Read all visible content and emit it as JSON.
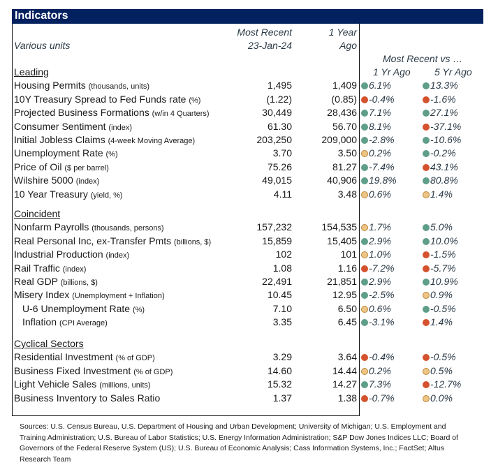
{
  "title": "Indicators",
  "header": {
    "units": "Various units",
    "recent_l1": "Most Recent",
    "recent_l2": "23-Jan-24",
    "ago_l1": "1 Year",
    "ago_l2": "Ago",
    "compare": "Most Recent vs …",
    "col_1yr": "1 Yr Ago",
    "col_5yr": "5 Yr Ago"
  },
  "status_colors": {
    "green": "#5f9e88",
    "red": "#d4522e",
    "yellow": "#eec584"
  },
  "sections": [
    {
      "name": "Leading",
      "rows": [
        {
          "label": "Housing Permits",
          "unit": "(thousands, units)",
          "recent": "1,495",
          "ago": "1,409",
          "yr1": {
            "value": "6.1%",
            "status": "green"
          },
          "yr5": {
            "value": "13.3%",
            "status": "green"
          }
        },
        {
          "label": "10Y Treasury Spread to Fed Funds rate",
          "unit": "(%)",
          "recent": "(1.22)",
          "ago": "(0.85)",
          "yr1": {
            "value": "-0.4%",
            "status": "red"
          },
          "yr5": {
            "value": "-1.6%",
            "status": "red"
          }
        },
        {
          "label": "Projected Business Formations",
          "unit": "(w/in 4 Quarters)",
          "recent": "30,449",
          "ago": "28,436",
          "yr1": {
            "value": "7.1%",
            "status": "green"
          },
          "yr5": {
            "value": "27.1%",
            "status": "green"
          }
        },
        {
          "label": "Consumer Sentiment",
          "unit": "(index)",
          "recent": "61.30",
          "ago": "56.70",
          "yr1": {
            "value": "8.1%",
            "status": "green"
          },
          "yr5": {
            "value": "-37.1%",
            "status": "red"
          }
        },
        {
          "label": "Initial Jobless Claims",
          "unit": "(4-week Moving Average)",
          "recent": "203,250",
          "ago": "209,000",
          "yr1": {
            "value": "-2.8%",
            "status": "green"
          },
          "yr5": {
            "value": "-10.6%",
            "status": "green"
          }
        },
        {
          "label": "Unemployment Rate",
          "unit": "(%)",
          "recent": "3.70",
          "ago": "3.50",
          "yr1": {
            "value": "0.2%",
            "status": "yellow"
          },
          "yr5": {
            "value": "-0.2%",
            "status": "green"
          }
        },
        {
          "label": "Price of Oil",
          "unit": "($ per barrel)",
          "recent": "75.26",
          "ago": "81.27",
          "yr1": {
            "value": "-7.4%",
            "status": "green"
          },
          "yr5": {
            "value": "43.1%",
            "status": "red"
          }
        },
        {
          "label": "Wilshire 5000",
          "unit": "(index)",
          "recent": "49,015",
          "ago": "40,906",
          "yr1": {
            "value": "19.8%",
            "status": "green"
          },
          "yr5": {
            "value": "80.8%",
            "status": "green"
          }
        },
        {
          "label": "10 Year Treasury",
          "unit": "(yield, %)",
          "recent": "4.11",
          "ago": "3.48",
          "yr1": {
            "value": "0.6%",
            "status": "yellow"
          },
          "yr5": {
            "value": "1.4%",
            "status": "yellow"
          }
        }
      ]
    },
    {
      "name": "Coincident",
      "rows": [
        {
          "label": "Nonfarm Payrolls",
          "unit": "(thousands, persons)",
          "recent": "157,232",
          "ago": "154,535",
          "yr1": {
            "value": "1.7%",
            "status": "yellow"
          },
          "yr5": {
            "value": "5.0%",
            "status": "green"
          }
        },
        {
          "label": "Real Personal Inc, ex-Transfer Pmts",
          "unit": "(billions, $)",
          "recent": "15,859",
          "ago": "15,405",
          "yr1": {
            "value": "2.9%",
            "status": "green"
          },
          "yr5": {
            "value": "10.0%",
            "status": "green"
          }
        },
        {
          "label": "Industrial Production",
          "unit": "(index)",
          "recent": "102",
          "ago": "101",
          "yr1": {
            "value": "1.0%",
            "status": "yellow"
          },
          "yr5": {
            "value": "-1.5%",
            "status": "red"
          }
        },
        {
          "label": "Rail Traffic ",
          "unit": "(index)",
          "recent": "1.08",
          "ago": "1.16",
          "yr1": {
            "value": "-7.2%",
            "status": "red"
          },
          "yr5": {
            "value": "-5.7%",
            "status": "red"
          }
        },
        {
          "label": "Real GDP ",
          "unit": "(billions, $)",
          "recent": "22,491",
          "ago": "21,851",
          "yr1": {
            "value": "2.9%",
            "status": "green"
          },
          "yr5": {
            "value": "10.9%",
            "status": "green"
          }
        },
        {
          "label": "Misery Index",
          "unit": "(Unemployment + Inflation)",
          "recent": "10.45",
          "ago": "12.95",
          "yr1": {
            "value": "-2.5%",
            "status": "green"
          },
          "yr5": {
            "value": "0.9%",
            "status": "yellow"
          }
        },
        {
          "label": "U-6 Unemployment Rate",
          "unit": "(%)",
          "recent": "7.10",
          "ago": "6.50",
          "indent": true,
          "yr1": {
            "value": "0.6%",
            "status": "yellow"
          },
          "yr5": {
            "value": "-0.5%",
            "status": "green"
          }
        },
        {
          "label": "Inflation ",
          "unit": "(CPI Average)",
          "recent": "3.35",
          "ago": "6.45",
          "indent": true,
          "yr1": {
            "value": "-3.1%",
            "status": "green"
          },
          "yr5": {
            "value": "1.4%",
            "status": "red"
          }
        }
      ]
    },
    {
      "name": "Cyclical Sectors",
      "rows": [
        {
          "label": "Residential Investment",
          "unit": "(% of GDP)",
          "recent": "3.29",
          "ago": "3.64",
          "yr1": {
            "value": "-0.4%",
            "status": "red"
          },
          "yr5": {
            "value": "-0.5%",
            "status": "red"
          }
        },
        {
          "label": "Business Fixed Investment",
          "unit": "(% of GDP)",
          "recent": "14.60",
          "ago": "14.44",
          "yr1": {
            "value": "0.2%",
            "status": "yellow"
          },
          "yr5": {
            "value": "0.5%",
            "status": "yellow"
          }
        },
        {
          "label": "Light Vehicle Sales",
          "unit": "(millions, units)",
          "recent": "15.32",
          "ago": "14.27",
          "yr1": {
            "value": "7.3%",
            "status": "green"
          },
          "yr5": {
            "value": "-12.7%",
            "status": "red"
          }
        },
        {
          "label": "Business Inventory to Sales Ratio",
          "unit": "",
          "recent": "1.37",
          "ago": "1.38",
          "yr1": {
            "value": "-0.7%",
            "status": "red"
          },
          "yr5": {
            "value": "0.0%",
            "status": "yellow"
          }
        }
      ]
    }
  ],
  "sources": "Sources: U.S. Census Bureau, U.S. Department of Housing and Urban Development; University of Michigan; U.S. Employment and Training Administration; U.S. Bureau of Labor Statistics; U.S. Energy Information Administration; S&P Dow Jones Indices LLC; Board of Governors of the Federal Reserve System (US); U.S. Bureau of Economic Analysis; Cass Information Systems, Inc.; FactSet; Altus Research Team"
}
